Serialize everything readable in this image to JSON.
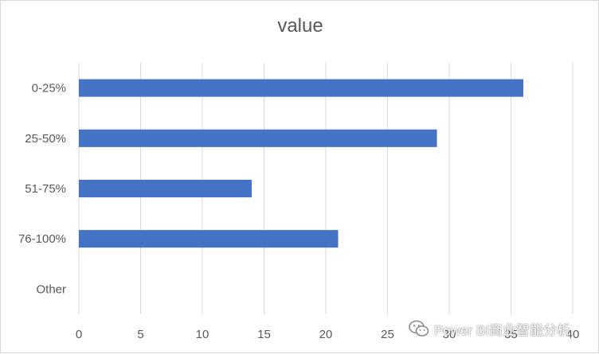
{
  "chart_data": {
    "type": "bar",
    "orientation": "horizontal",
    "title": "value",
    "categories": [
      "0-25%",
      "25-50%",
      "51-75%",
      "76-100%",
      "Other"
    ],
    "values": [
      36,
      29,
      14,
      21,
      0
    ],
    "xlim": [
      0,
      40
    ],
    "xticks": [
      "0",
      "5",
      "10",
      "15",
      "20",
      "25",
      "30",
      "35",
      "40"
    ],
    "xlabel": "",
    "ylabel": "",
    "grid": "vertical",
    "bar_color": "#4472c4",
    "grid_color": "#d9d9d9",
    "label_color": "#595959"
  },
  "watermark": {
    "text": "Power BI商业智能分析",
    "icon": "wechat-icon"
  }
}
